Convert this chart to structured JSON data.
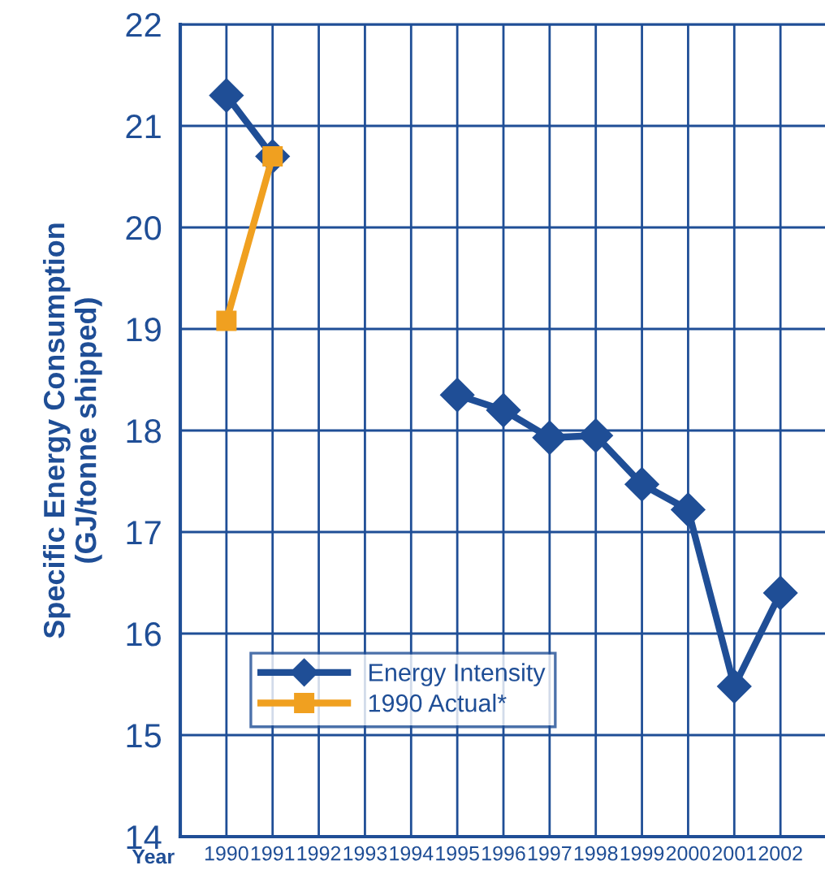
{
  "chart_data": {
    "type": "line",
    "xlabel": "Year",
    "ylabel": "Specific Energy Consumption\n(GJ/tonne shipped)",
    "categories": [
      "1990",
      "1991",
      "1992",
      "1993",
      "1994",
      "1995",
      "1996",
      "1997",
      "1998",
      "1999",
      "2000",
      "2001",
      "2002"
    ],
    "series": [
      {
        "name": "Energy Intensity",
        "color": "#1f4e96",
        "marker": "diamond",
        "values": [
          21.3,
          20.7,
          null,
          null,
          null,
          18.35,
          18.2,
          17.93,
          17.95,
          17.47,
          17.22,
          15.48,
          16.4
        ]
      },
      {
        "name": "1990 Actual*",
        "color": "#f0a020",
        "marker": "square",
        "values": [
          19.08,
          20.7,
          null,
          null,
          null,
          null,
          null,
          null,
          null,
          null,
          null,
          null,
          null
        ]
      }
    ],
    "ylim": [
      14,
      22
    ],
    "yticks": [
      14,
      15,
      16,
      17,
      18,
      19,
      20,
      21,
      22
    ],
    "grid": true,
    "legend": "bottom left",
    "line_style": "solid"
  }
}
